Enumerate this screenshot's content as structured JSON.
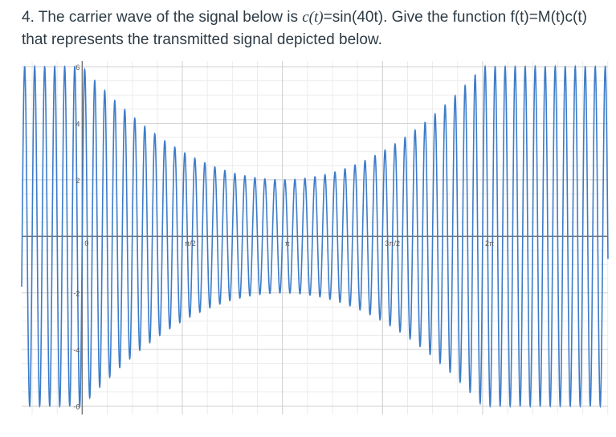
{
  "question": {
    "number": "4.",
    "lead": "The carrier wave of the signal below is ",
    "carrier_formula_lhs": "c(t)",
    "carrier_formula_rhs": "=sin(40t)",
    "tail": ". Give the function f(t)=M(t)c(t) that represents the transmitted signal depicted below."
  },
  "chart_data": {
    "type": "line",
    "title": "",
    "xlabel": "",
    "ylabel": "",
    "x_ticks": [
      {
        "value": 0,
        "label": "0"
      },
      {
        "value": 1.5708,
        "label": "π/2"
      },
      {
        "value": 3.1416,
        "label": "π"
      },
      {
        "value": 4.7124,
        "label": "3π/2"
      },
      {
        "value": 6.2832,
        "label": "2π"
      }
    ],
    "y_ticks": [
      {
        "value": 6,
        "label": "6"
      },
      {
        "value": 4,
        "label": "4"
      },
      {
        "value": 2,
        "label": "2"
      },
      {
        "value": -2,
        "label": "-2"
      },
      {
        "value": -4,
        "label": "-4"
      },
      {
        "value": -6,
        "label": "-6"
      }
    ],
    "xlim": [
      -0.95,
      8.25
    ],
    "ylim": [
      -6.3,
      6.2
    ],
    "grid": true,
    "carrier_frequency": 40,
    "envelope": {
      "center": 3.14159,
      "min_amplitude": 2,
      "max_amplitude": 6
    },
    "series_color": "#3d7cc9"
  }
}
